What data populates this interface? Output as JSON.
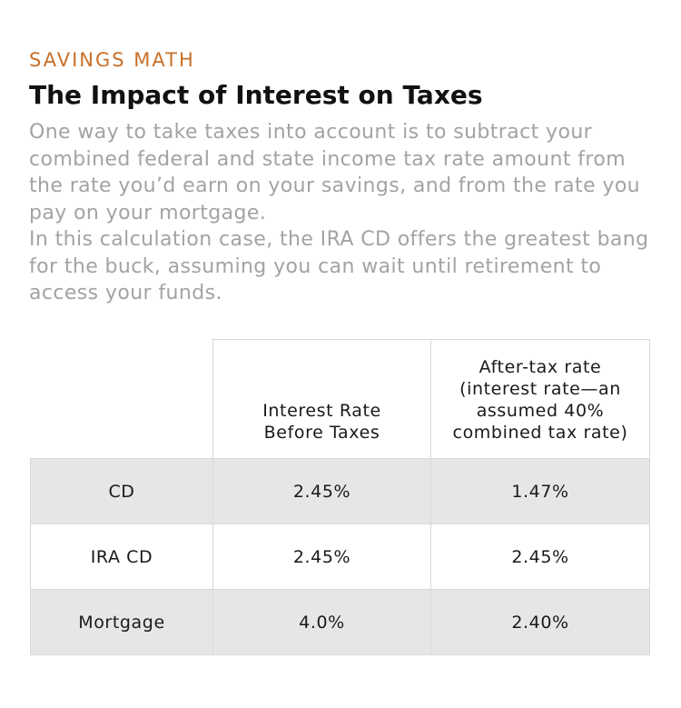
{
  "kicker": "SAVINGS MATH",
  "title": "The Impact of Interest on Taxes",
  "description": {
    "para1": "One way to take taxes into account is to subtract your combined federal and state income tax rate amount from the rate you’d earn on your savings, and from the rate you pay on your mortgage.",
    "para2": "In this calculation case, the IRA CD offers the greatest bang for the buck, assuming you can wait until retirement to access your funds."
  },
  "table": {
    "headers": {
      "col2_line1": "Interest Rate",
      "col2_line2": "Before Taxes",
      "col3_line1": "After-tax rate",
      "col3_line2": "(interest rate—an",
      "col3_line3": "assumed 40%",
      "col3_line4": "combined tax rate)"
    },
    "rows": [
      {
        "label": "CD",
        "before": "2.45%",
        "after": "1.47%"
      },
      {
        "label": "IRA CD",
        "before": "2.45%",
        "after": "2.45%"
      },
      {
        "label": "Mortgage",
        "before": "4.0%",
        "after": "2.40%"
      }
    ]
  },
  "colors": {
    "kicker": "#c8702a",
    "description": "#a3a3a3",
    "row_shade": "#e6e6e8"
  }
}
